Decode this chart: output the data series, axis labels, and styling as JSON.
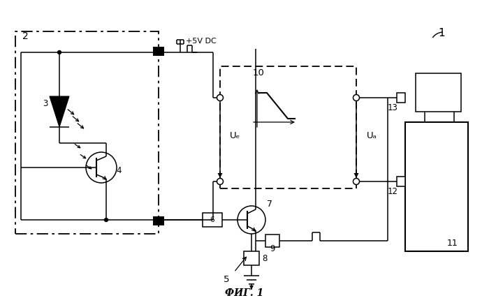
{
  "bg_color": "#ffffff",
  "label_1": "1",
  "label_2": "2",
  "label_3": "3",
  "label_4": "4",
  "label_5": "5",
  "label_6": "6",
  "label_7": "7",
  "label_8": "8",
  "label_9": "9",
  "label_10": "10",
  "label_11": "11",
  "label_12": "12",
  "label_13": "13",
  "label_power": "+5V DC",
  "fig_caption": "ФИГ. 1"
}
